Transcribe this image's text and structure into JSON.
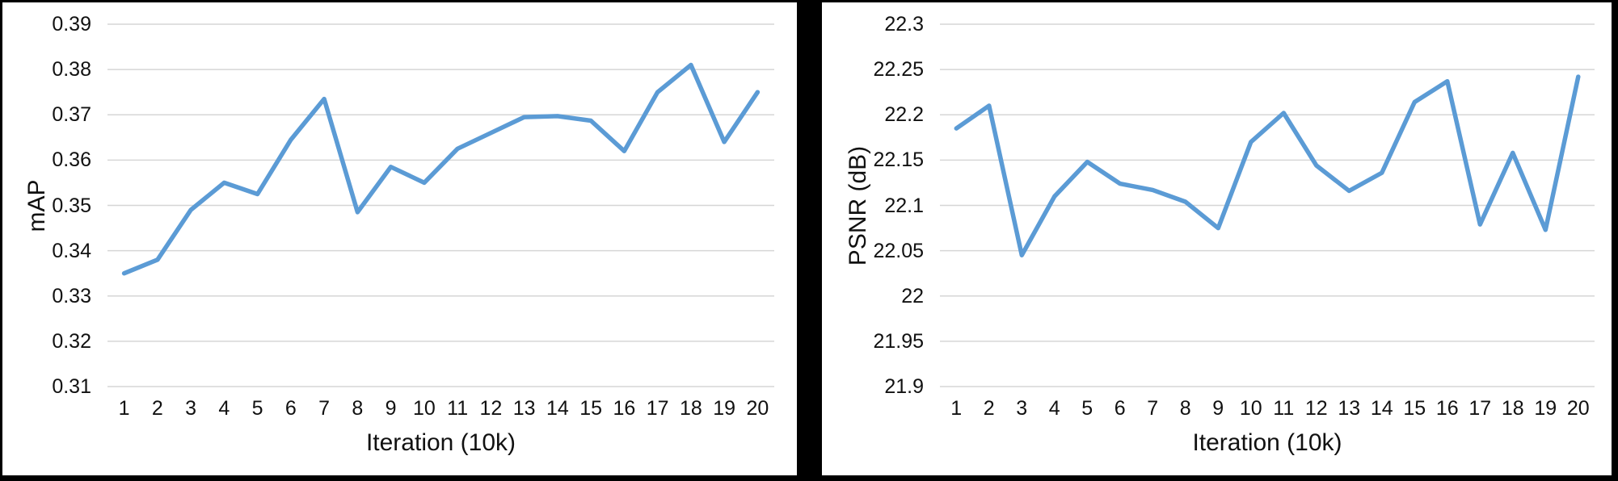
{
  "layout_colors": {
    "frame": "#000000",
    "panel_bg": "#ffffff",
    "grid": "#d6d6d6",
    "text": "#111111",
    "accent_line": "#5b9bd5"
  },
  "chart_data": [
    {
      "type": "line",
      "title": "",
      "xlabel": "Iteration (10k)",
      "ylabel": "mAP",
      "categories": [
        1,
        2,
        3,
        4,
        5,
        6,
        7,
        8,
        9,
        10,
        11,
        12,
        13,
        14,
        15,
        16,
        17,
        18,
        19,
        20
      ],
      "values": [
        0.335,
        0.338,
        0.349,
        0.355,
        0.3525,
        0.3645,
        0.3735,
        0.3485,
        0.3585,
        0.355,
        0.3625,
        0.366,
        0.3695,
        0.3697,
        0.3687,
        0.362,
        0.375,
        0.381,
        0.364,
        0.375
      ],
      "ylim": [
        0.31,
        0.39
      ],
      "ytick_values": [
        0.39,
        0.38,
        0.37,
        0.36,
        0.35,
        0.34,
        0.33,
        0.32,
        0.31
      ],
      "ytick_labels": [
        "0.39",
        "0.38",
        "0.37",
        "0.36",
        "0.35",
        "0.34",
        "0.33",
        "0.32",
        "0.31"
      ],
      "grid": true,
      "legend": "none",
      "line_color": "#5b9bd5",
      "grid_color": "#d6d6d6"
    },
    {
      "type": "line",
      "title": "",
      "xlabel": "Iteration (10k)",
      "ylabel": "PSNR (dB)",
      "categories": [
        1,
        2,
        3,
        4,
        5,
        6,
        7,
        8,
        9,
        10,
        11,
        12,
        13,
        14,
        15,
        16,
        17,
        18,
        19,
        20
      ],
      "values": [
        22.185,
        22.21,
        22.045,
        22.11,
        22.148,
        22.124,
        22.117,
        22.104,
        22.075,
        22.17,
        22.202,
        22.144,
        22.116,
        22.136,
        22.214,
        22.237,
        22.079,
        22.158,
        22.073,
        22.242
      ],
      "ylim": [
        21.9,
        22.3
      ],
      "ytick_values": [
        22.3,
        22.25,
        22.2,
        22.15,
        22.1,
        22.05,
        22,
        21.95,
        21.9
      ],
      "ytick_labels": [
        "22.3",
        "22.25",
        "22.2",
        "22.15",
        "22.1",
        "22.05",
        "22",
        "21.95",
        "21.9"
      ],
      "grid": true,
      "legend": "none",
      "line_color": "#5b9bd5",
      "grid_color": "#d6d6d6"
    }
  ]
}
